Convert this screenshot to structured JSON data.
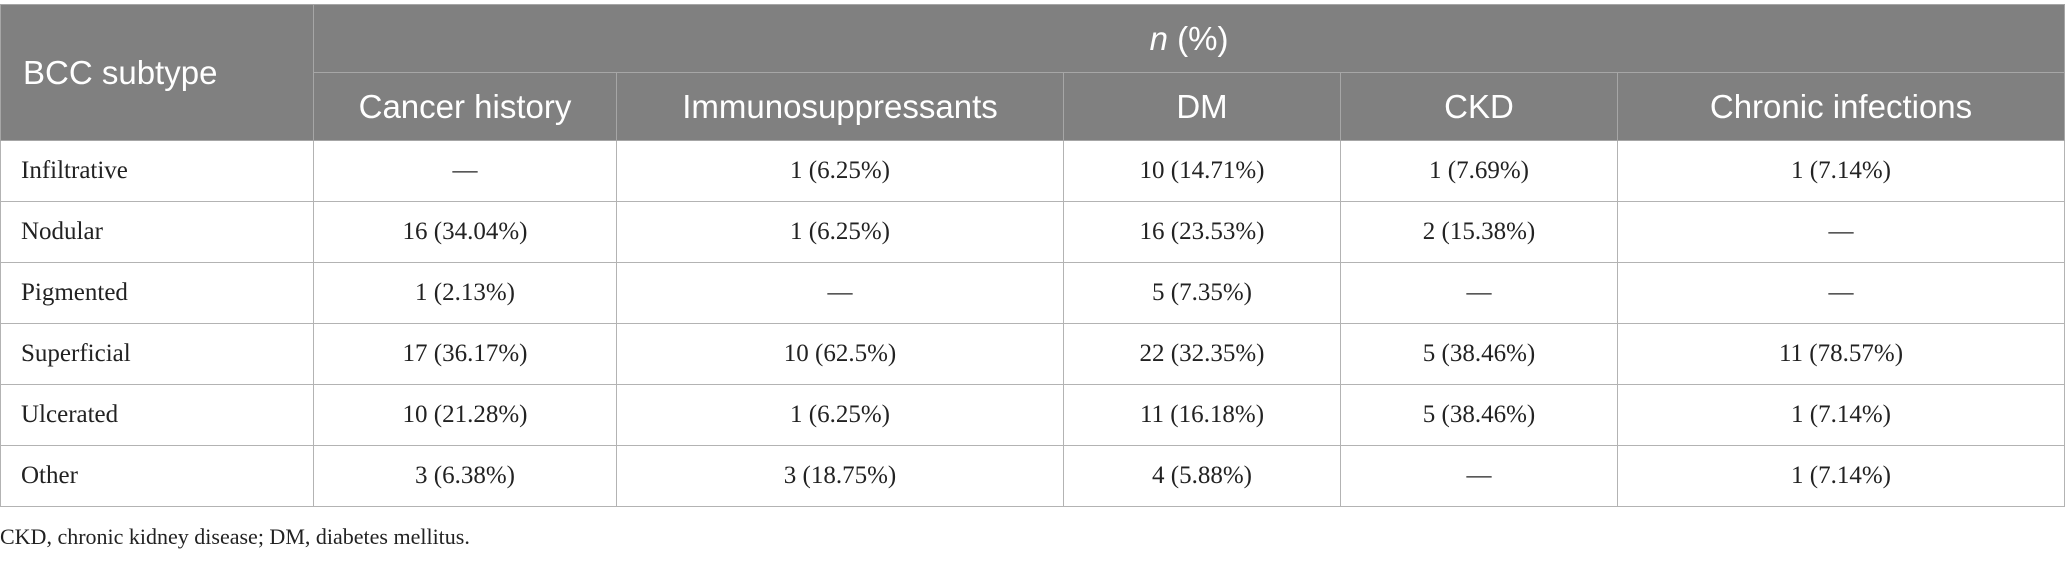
{
  "table": {
    "stub_header": "BCC subtype",
    "group_header_symbol": "n",
    "group_header_rest": " (%)",
    "columns": [
      "Cancer history",
      "Immunosuppressants",
      "DM",
      "CKD",
      "Chronic infections"
    ],
    "rows": [
      {
        "label": "Infiltrative",
        "cells": [
          "—",
          "1 (6.25%)",
          "10 (14.71%)",
          "1 (7.69%)",
          "1 (7.14%)"
        ]
      },
      {
        "label": "Nodular",
        "cells": [
          "16 (34.04%)",
          "1 (6.25%)",
          "16 (23.53%)",
          "2 (15.38%)",
          "—"
        ]
      },
      {
        "label": "Pigmented",
        "cells": [
          "1 (2.13%)",
          "—",
          "5 (7.35%)",
          "—",
          "—"
        ]
      },
      {
        "label": "Superficial",
        "cells": [
          "17 (36.17%)",
          "10 (62.5%)",
          "22 (32.35%)",
          "5 (38.46%)",
          "11 (78.57%)"
        ]
      },
      {
        "label": "Ulcerated",
        "cells": [
          "10 (21.28%)",
          "1 (6.25%)",
          "11 (16.18%)",
          "5 (38.46%)",
          "1 (7.14%)"
        ]
      },
      {
        "label": "Other",
        "cells": [
          "3 (6.38%)",
          "3 (18.75%)",
          "4 (5.88%)",
          "—",
          "1 (7.14%)"
        ]
      }
    ]
  },
  "footnote": "CKD, chronic kidney disease; DM, diabetes mellitus.",
  "colors": {
    "header_bg": "#808080",
    "header_text": "#ffffff",
    "border": "#b3b3b3"
  }
}
